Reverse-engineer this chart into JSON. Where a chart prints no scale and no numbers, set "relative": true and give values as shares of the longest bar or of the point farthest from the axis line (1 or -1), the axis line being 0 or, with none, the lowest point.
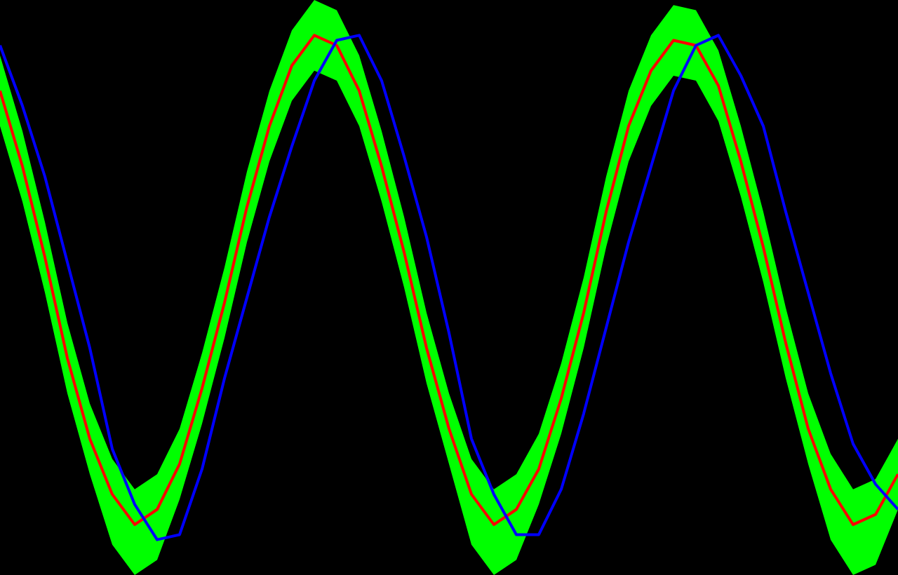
{
  "chart_data": {
    "type": "line",
    "relative": true,
    "grid": false,
    "categories": [
      null,
      null,
      null,
      null,
      null,
      null,
      null,
      null,
      null,
      null,
      null,
      null,
      null,
      null,
      null,
      null,
      null,
      null,
      null,
      null,
      null,
      null,
      null,
      null,
      null,
      null,
      null,
      null,
      null,
      null,
      null,
      null,
      null,
      null,
      null,
      null,
      null,
      null,
      null,
      null,
      null
    ],
    "series": [
      {
        "color": "#0000ff",
        "values": [
          0.98,
          0.86,
          0.72,
          0.55,
          0.38,
          0.18,
          0.07,
          0,
          0.01,
          0.14,
          0.32,
          0.48,
          0.64,
          0.78,
          0.91,
          0.99,
          1,
          0.91,
          0.76,
          0.6,
          0.41,
          0.2,
          0.09,
          0.01,
          0.01,
          0.1,
          0.25,
          0.42,
          0.59,
          0.74,
          0.89,
          0.98,
          1,
          0.92,
          0.82,
          0.65,
          0.49,
          0.33,
          0.19,
          0.11,
          0.06
        ]
      },
      {
        "color": "#00ff00",
        "values": [
          null,
          null,
          null,
          null,
          null,
          null,
          null,
          null,
          null,
          null,
          null,
          null,
          null,
          null,
          null,
          null,
          null,
          null,
          null,
          null,
          null,
          null,
          null,
          null,
          null,
          null,
          null,
          null,
          null,
          null,
          null,
          null,
          null,
          null,
          null,
          null,
          null,
          null,
          null,
          null,
          null
        ],
        "lower": [
          0.82,
          0.67,
          0.49,
          0.29,
          0.13,
          -0.01,
          -0.07,
          -0.04,
          0.08,
          0.23,
          0.4,
          0.59,
          0.75,
          0.87,
          0.93,
          0.91,
          0.82,
          0.67,
          0.5,
          0.31,
          0.15,
          -0.01,
          -0.07,
          -0.04,
          0.07,
          0.21,
          0.38,
          0.58,
          0.75,
          0.86,
          0.92,
          0.91,
          0.83,
          0.68,
          0.51,
          0.32,
          0.15,
          0,
          -0.07,
          -0.05,
          0.06
        ],
        "upper": [
          0.96,
          0.81,
          0.63,
          0.43,
          0.27,
          0.16,
          0.1,
          0.13,
          0.22,
          0.37,
          0.54,
          0.73,
          0.89,
          1.01,
          1.07,
          1.05,
          0.96,
          0.81,
          0.64,
          0.45,
          0.29,
          0.16,
          0.1,
          0.13,
          0.21,
          0.35,
          0.52,
          0.72,
          0.89,
          1.0,
          1.06,
          1.05,
          0.97,
          0.82,
          0.65,
          0.46,
          0.29,
          0.17,
          0.1,
          0.12,
          0.2
        ]
      },
      {
        "color": "#ff0000",
        "values": [
          0.89,
          0.74,
          0.56,
          0.36,
          0.2,
          0.09,
          0.03,
          0.06,
          0.15,
          0.3,
          0.47,
          0.66,
          0.82,
          0.94,
          1,
          0.98,
          0.89,
          0.74,
          0.57,
          0.38,
          0.22,
          0.09,
          0.03,
          0.06,
          0.14,
          0.28,
          0.45,
          0.65,
          0.82,
          0.93,
          0.99,
          0.98,
          0.9,
          0.75,
          0.58,
          0.39,
          0.22,
          0.1,
          0.03,
          0.05,
          0.13
        ]
      }
    ]
  }
}
